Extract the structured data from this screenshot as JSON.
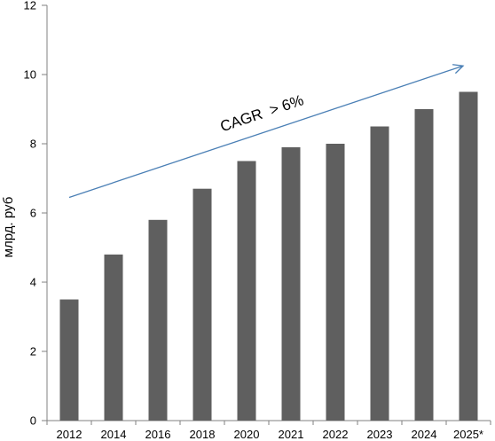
{
  "chart_data": {
    "type": "bar",
    "title": "",
    "xlabel": "",
    "ylabel": "млрд. руб",
    "categories": [
      "2012",
      "2014",
      "2016",
      "2018",
      "2020",
      "2021",
      "2022",
      "2023",
      "2024",
      "2025*"
    ],
    "values": [
      3.5,
      4.8,
      5.8,
      6.7,
      7.5,
      7.9,
      8.0,
      8.5,
      9.0,
      9.5
    ],
    "ylim": [
      0,
      12
    ],
    "yticks": [
      0,
      2,
      4,
      6,
      8,
      10,
      12
    ],
    "grid": false,
    "legend": "none",
    "bar_color": "#5f5f5f",
    "annotation": {
      "text": "CAGR  > 6%",
      "arrow_color": "#4a7fb5",
      "arrow_from": [
        "2012",
        6.45
      ],
      "arrow_to": [
        "2025*",
        10.25
      ]
    }
  }
}
